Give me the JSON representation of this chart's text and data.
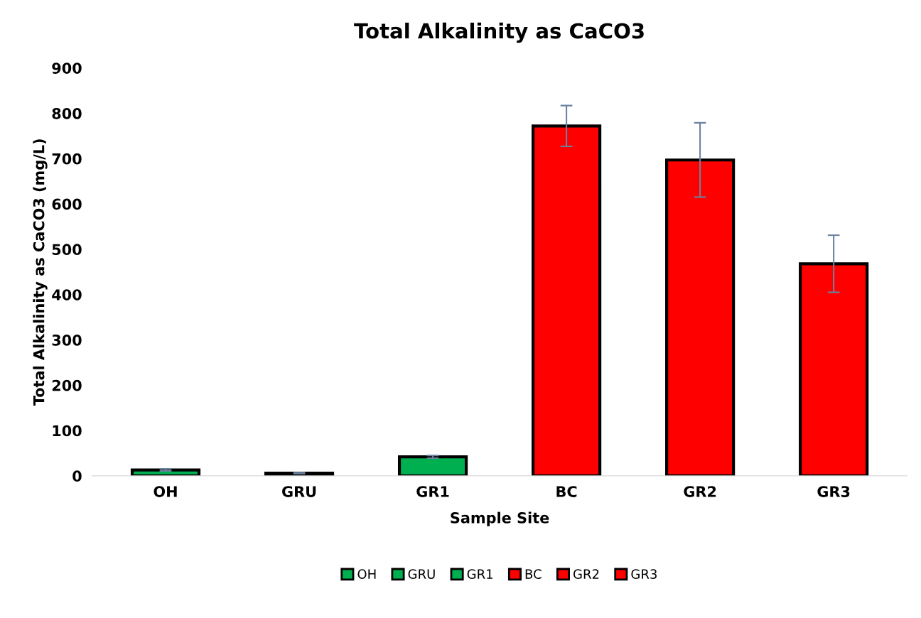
{
  "chart_data": {
    "type": "bar",
    "title": "Total Alkalinity as CaCO3",
    "xlabel": "Sample Site",
    "ylabel": "Total Alkalinity as CaCO3 (mg/L)",
    "categories": [
      "OH",
      "GRU",
      "GR1",
      "BC",
      "GR2",
      "GR3"
    ],
    "series": [
      {
        "name": "OH",
        "color": "#00b050",
        "values": [
          13,
          null,
          null,
          null,
          null,
          null
        ],
        "errors": [
          2,
          null,
          null,
          null,
          null,
          null
        ]
      },
      {
        "name": "GRU",
        "color": "#00b050",
        "values": [
          null,
          6,
          null,
          null,
          null,
          null
        ],
        "errors": [
          null,
          1,
          null,
          null,
          null,
          null
        ]
      },
      {
        "name": "GR1",
        "color": "#00b050",
        "values": [
          null,
          null,
          42,
          null,
          null,
          null
        ],
        "errors": [
          null,
          null,
          3,
          null,
          null,
          null
        ]
      },
      {
        "name": "BC",
        "color": "#ff0000",
        "values": [
          null,
          null,
          null,
          772,
          null,
          null
        ],
        "errors": [
          null,
          null,
          null,
          45,
          null,
          null
        ]
      },
      {
        "name": "GR2",
        "color": "#ff0000",
        "values": [
          null,
          null,
          null,
          null,
          697,
          null
        ],
        "errors": [
          null,
          null,
          null,
          null,
          82,
          null
        ]
      },
      {
        "name": "GR3",
        "color": "#ff0000",
        "values": [
          null,
          null,
          null,
          null,
          null,
          468
        ],
        "errors": [
          null,
          null,
          null,
          null,
          null,
          63
        ]
      }
    ],
    "ylim": [
      0,
      900
    ],
    "yticks": [
      0,
      100,
      200,
      300,
      400,
      500,
      600,
      700,
      800,
      900
    ],
    "grid": false,
    "legend": "bottom"
  }
}
